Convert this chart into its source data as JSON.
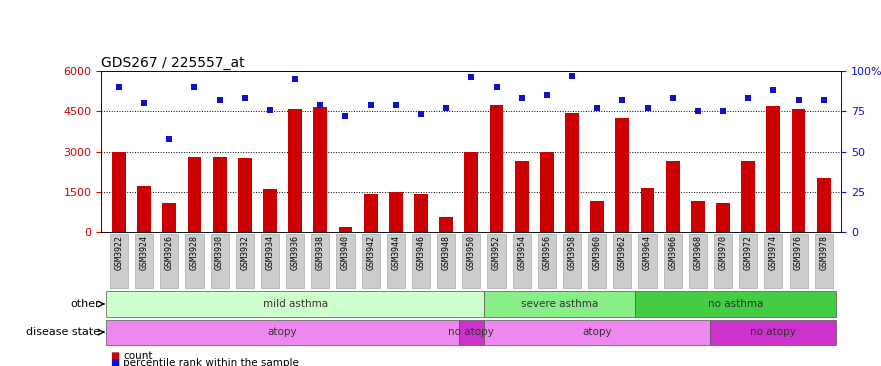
{
  "title": "GDS267 / 225557_at",
  "samples": [
    "GSM3922",
    "GSM3924",
    "GSM3926",
    "GSM3928",
    "GSM3930",
    "GSM3932",
    "GSM3934",
    "GSM3936",
    "GSM3938",
    "GSM3940",
    "GSM3942",
    "GSM3944",
    "GSM3946",
    "GSM3948",
    "GSM3950",
    "GSM3952",
    "GSM3954",
    "GSM3956",
    "GSM3958",
    "GSM3960",
    "GSM3962",
    "GSM3964",
    "GSM3966",
    "GSM3968",
    "GSM3970",
    "GSM3972",
    "GSM3974",
    "GSM3976",
    "GSM3978"
  ],
  "counts": [
    3000,
    1700,
    1100,
    2800,
    2800,
    2750,
    1600,
    4600,
    4650,
    200,
    1400,
    1500,
    1400,
    550,
    3000,
    4750,
    2650,
    3000,
    4450,
    1150,
    4250,
    1650,
    2650,
    1150,
    1100,
    2650,
    4700,
    4600,
    2000
  ],
  "percentiles": [
    90,
    80,
    58,
    90,
    82,
    83,
    76,
    95,
    79,
    72,
    79,
    79,
    73,
    77,
    96,
    90,
    83,
    85,
    97,
    77,
    82,
    77,
    83,
    75,
    75,
    83,
    88,
    82,
    82
  ],
  "ylim_left": [
    0,
    6000
  ],
  "ylim_right": [
    0,
    100
  ],
  "yticks_left": [
    0,
    1500,
    3000,
    4500,
    6000
  ],
  "ytick_labels_left": [
    "0",
    "1500",
    "3000",
    "4500",
    "6000"
  ],
  "yticks_right": [
    0,
    25,
    50,
    75,
    100
  ],
  "ytick_labels_right": [
    "0",
    "25",
    "50",
    "75",
    "100%"
  ],
  "bar_color": "#cc0000",
  "dot_color": "#1111cc",
  "bar_width": 0.55,
  "other_row": [
    {
      "label": "mild asthma",
      "start": 0,
      "end": 15,
      "color": "#ccffcc"
    },
    {
      "label": "severe asthma",
      "start": 15,
      "end": 21,
      "color": "#88ee88"
    },
    {
      "label": "no asthma",
      "start": 21,
      "end": 29,
      "color": "#44cc44"
    }
  ],
  "disease_row": [
    {
      "label": "atopy",
      "start": 0,
      "end": 14,
      "color": "#ee88ee"
    },
    {
      "label": "no atopy",
      "start": 14,
      "end": 15,
      "color": "#cc33cc"
    },
    {
      "label": "atopy",
      "start": 15,
      "end": 24,
      "color": "#ee88ee"
    },
    {
      "label": "no atopy",
      "start": 24,
      "end": 29,
      "color": "#cc33cc"
    }
  ],
  "other_label": "other",
  "disease_label": "disease state",
  "legend_count_label": "count",
  "legend_pct_label": "percentile rank within the sample",
  "tick_label_color_left": "#cc0000",
  "tick_label_color_right": "#1111cc",
  "title_fontsize": 10,
  "grid_color": "#000000",
  "plot_bg_color": "#ffffff",
  "tick_box_color": "#cccccc",
  "tick_box_edge": "#999999"
}
